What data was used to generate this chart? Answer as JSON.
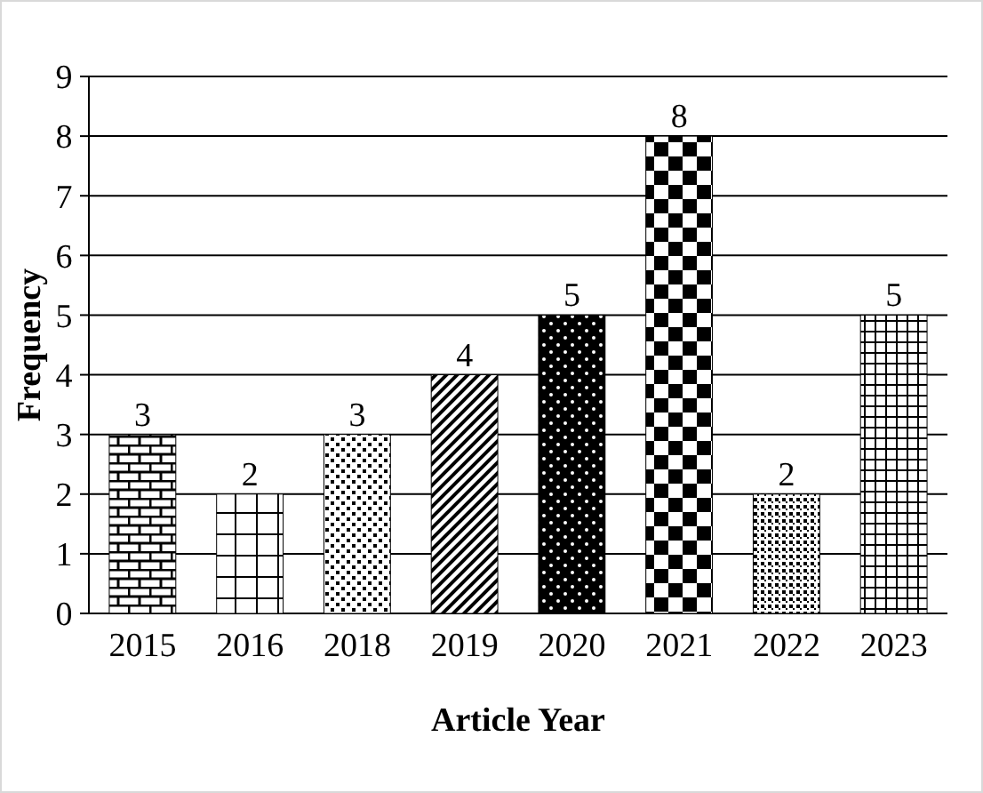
{
  "chart_data": {
    "type": "bar",
    "xlabel": "Article Year",
    "ylabel": "Frequency",
    "categories": [
      "2015",
      "2016",
      "2018",
      "2019",
      "2020",
      "2021",
      "2022",
      "2023"
    ],
    "values": [
      3,
      2,
      3,
      4,
      5,
      8,
      2,
      5
    ],
    "color": "#000000",
    "ylim": [
      0,
      9
    ],
    "yticks": [
      0,
      1,
      2,
      3,
      4,
      5,
      6,
      7,
      8,
      9
    ],
    "grid": "y",
    "data_labels": true
  }
}
